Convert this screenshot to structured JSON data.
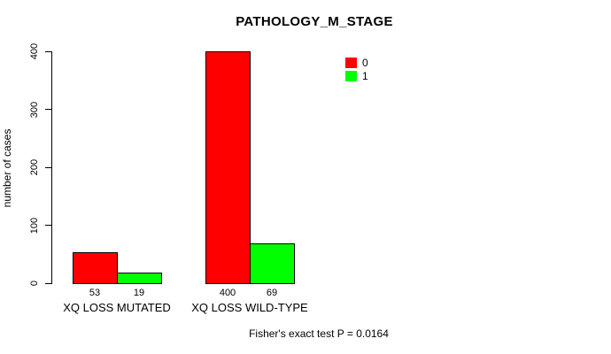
{
  "chart_data": {
    "type": "bar",
    "title": "PATHOLOGY_M_STAGE",
    "categories": [
      "XQ LOSS MUTATED",
      "XQ LOSS WILD-TYPE"
    ],
    "series": [
      {
        "name": "0",
        "color": "#ff0000",
        "values": [
          53,
          400
        ]
      },
      {
        "name": "1",
        "color": "#00ff00",
        "values": [
          19,
          69
        ]
      }
    ],
    "bar_value_labels": [
      [
        "53",
        "400"
      ],
      [
        "19",
        "69"
      ]
    ],
    "xlabel": "",
    "ylabel": "number of cases",
    "ylim": [
      0,
      400
    ],
    "yticks": [
      0,
      100,
      200,
      300,
      400
    ],
    "grid": false,
    "legend_position": "top-right",
    "annotation": "Fisher's exact test P = 0.0164"
  }
}
